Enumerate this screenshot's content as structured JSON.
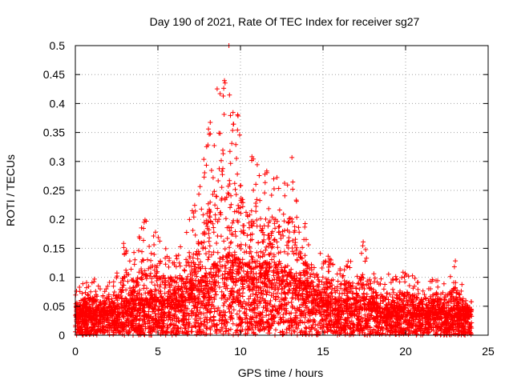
{
  "chart_data": {
    "type": "scatter",
    "title": "Day 190 of 2021, Rate Of TEC Index for receiver sg27",
    "xlabel": "GPS time / hours",
    "ylabel": "ROTI / TECUs",
    "xlim": [
      0,
      25
    ],
    "ylim": [
      0,
      0.5
    ],
    "x_ticks": [
      "0",
      "5",
      "10",
      "15",
      "20",
      "25"
    ],
    "y_ticks": [
      "0",
      "0.05",
      "0.1",
      "0.15",
      "0.2",
      "0.25",
      "0.3",
      "0.35",
      "0.4",
      "0.45",
      "0.5"
    ],
    "grid": true,
    "marker": "+",
    "marker_color": "#ff0000",
    "series": [
      {
        "envelope_x": [
          0,
          0.5,
          1,
          1.5,
          2,
          2.5,
          3,
          3.5,
          4,
          4.5,
          5,
          5.5,
          6,
          6.5,
          7,
          7.5,
          8,
          8.5,
          9,
          9.5,
          10,
          10.5,
          11,
          11.5,
          12,
          12.5,
          13,
          13.5,
          14,
          14.5,
          15,
          15.5,
          16,
          16.5,
          17,
          17.5,
          18,
          18.5,
          19,
          19.5,
          20,
          20.5,
          21,
          21.5,
          22,
          22.5,
          23,
          23.5,
          24
        ],
        "envelope_max": [
          0.08,
          0.09,
          0.11,
          0.08,
          0.09,
          0.11,
          0.18,
          0.14,
          0.19,
          0.23,
          0.17,
          0.15,
          0.14,
          0.16,
          0.21,
          0.25,
          0.35,
          0.42,
          0.47,
          0.44,
          0.37,
          0.32,
          0.33,
          0.29,
          0.31,
          0.29,
          0.33,
          0.24,
          0.19,
          0.17,
          0.15,
          0.13,
          0.12,
          0.14,
          0.12,
          0.17,
          0.12,
          0.11,
          0.11,
          0.1,
          0.12,
          0.1,
          0.09,
          0.1,
          0.11,
          0.1,
          0.13,
          0.08,
          0.06
        ],
        "baseline": [
          0.03,
          0.03,
          0.03,
          0.03,
          0.03,
          0.03,
          0.04,
          0.04,
          0.04,
          0.05,
          0.04,
          0.04,
          0.05,
          0.05,
          0.06,
          0.06,
          0.07,
          0.08,
          0.09,
          0.09,
          0.08,
          0.08,
          0.08,
          0.08,
          0.08,
          0.07,
          0.07,
          0.06,
          0.06,
          0.05,
          0.05,
          0.04,
          0.04,
          0.04,
          0.04,
          0.04,
          0.04,
          0.03,
          0.03,
          0.03,
          0.03,
          0.03,
          0.03,
          0.03,
          0.03,
          0.03,
          0.03,
          0.03,
          0.03
        ],
        "x_range": [
          0,
          24
        ],
        "peak_point": [
          9.3,
          0.5
        ]
      }
    ]
  }
}
